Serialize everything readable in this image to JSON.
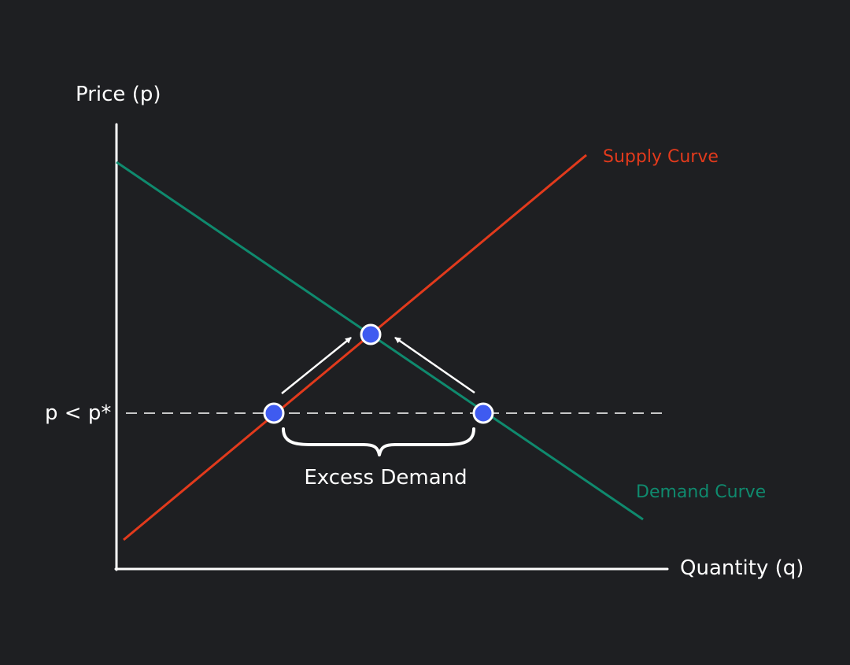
{
  "labels": {
    "y_axis": "Price (p)",
    "x_axis": "Quantity (q)",
    "price_level": "p < p*",
    "supply": "Supply Curve",
    "demand": "Demand Curve",
    "gap": "Excess Demand"
  },
  "colors": {
    "background": "#1e1f22",
    "axes": "#ffffff",
    "supply": "#e23a1c",
    "demand": "#0f8a6e",
    "point_fill": "#3f5bf0",
    "point_stroke": "#ffffff",
    "dashed_line": "#ffffff",
    "arrows": "#ffffff"
  },
  "points": [
    "equilibrium",
    "supplied-at-low-price",
    "demanded-at-low-price"
  ]
}
